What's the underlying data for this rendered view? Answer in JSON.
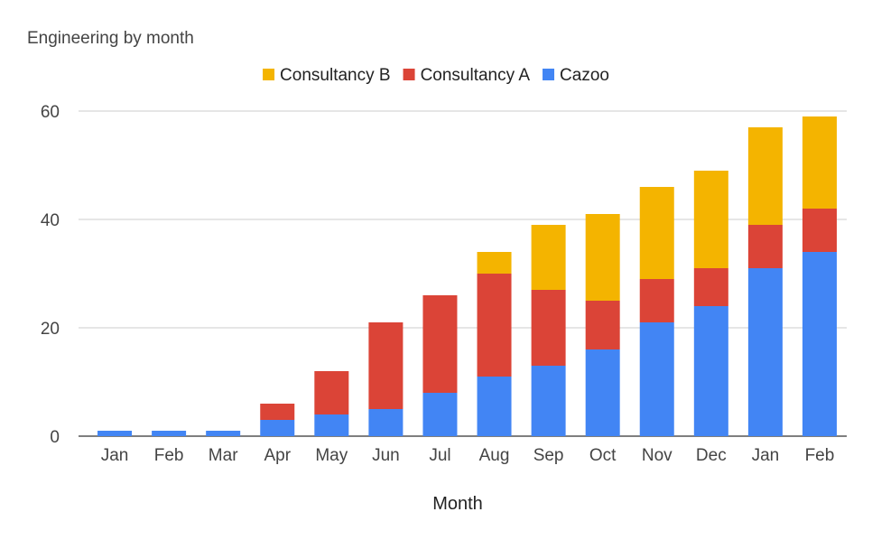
{
  "chart_data": {
    "type": "bar",
    "stacked": true,
    "title": "Engineering by month",
    "xlabel": "Month",
    "ylabel": "",
    "ylim": [
      0,
      60
    ],
    "yticks": [
      0,
      20,
      40,
      60
    ],
    "grid": true,
    "legend_position": "top",
    "categories": [
      "Jan",
      "Feb",
      "Mar",
      "Apr",
      "May",
      "Jun",
      "Jul",
      "Aug",
      "Sep",
      "Oct",
      "Nov",
      "Dec",
      "Jan",
      "Feb"
    ],
    "series": [
      {
        "name": "Cazoo",
        "color": "#4285f4",
        "values": [
          1,
          1,
          1,
          3,
          4,
          5,
          8,
          11,
          13,
          16,
          21,
          24,
          31,
          34
        ]
      },
      {
        "name": "Consultancy A",
        "color": "#db4437",
        "values": [
          0,
          0,
          0,
          3,
          8,
          16,
          18,
          19,
          14,
          9,
          8,
          7,
          8,
          8
        ]
      },
      {
        "name": "Consultancy B",
        "color": "#f4b400",
        "values": [
          0,
          0,
          0,
          0,
          0,
          0,
          0,
          4,
          12,
          16,
          17,
          18,
          18,
          17
        ]
      }
    ],
    "legend_order": [
      "Consultancy B",
      "Consultancy A",
      "Cazoo"
    ]
  }
}
